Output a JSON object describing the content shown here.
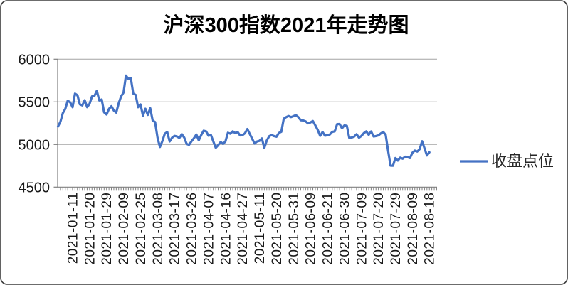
{
  "chart": {
    "title": "沪深300指数2021年走势图",
    "legend_label": "收盘点位"
  },
  "colors": {
    "line": "#4472C4",
    "gridline": "#A3A3A3",
    "axis": "#808080",
    "tick": "#808080",
    "text": "#1a1a1a",
    "border": "#3b3b3b",
    "background": "#ffffff"
  },
  "chart_data": {
    "type": "line",
    "title": "沪深300指数2021年走势图",
    "xlabel": "",
    "ylabel": "",
    "ylim": [
      4500,
      6000
    ],
    "y_ticks": [
      4500,
      5000,
      5500,
      6000
    ],
    "grid": "horizontal",
    "legend_position": "right",
    "x_label_first_index": 6,
    "x_label_every": 7,
    "x_tick_labels": [
      "2021-01-11",
      "2021-01-20",
      "2021-01-29",
      "2021-02-09",
      "2021-02-25",
      "2021-03-08",
      "2021-03-17",
      "2021-03-26",
      "2021-04-07",
      "2021-04-16",
      "2021-04-27",
      "2021-05-11",
      "2021-05-20",
      "2021-05-31",
      "2021-06-09",
      "2021-06-21",
      "2021-06-30",
      "2021-07-09",
      "2021-07-20",
      "2021-07-29",
      "2021-08-09",
      "2021-08-18"
    ],
    "series": [
      {
        "name": "收盘点位",
        "color": "#4472C4",
        "dates": [
          "2020-12-31",
          "2021-01-04",
          "2021-01-05",
          "2021-01-06",
          "2021-01-07",
          "2021-01-08",
          "2021-01-11",
          "2021-01-12",
          "2021-01-13",
          "2021-01-14",
          "2021-01-15",
          "2021-01-18",
          "2021-01-19",
          "2021-01-20",
          "2021-01-21",
          "2021-01-22",
          "2021-01-25",
          "2021-01-26",
          "2021-01-27",
          "2021-01-28",
          "2021-01-29",
          "2021-02-01",
          "2021-02-02",
          "2021-02-03",
          "2021-02-04",
          "2021-02-05",
          "2021-02-08",
          "2021-02-09",
          "2021-02-10",
          "2021-02-18",
          "2021-02-19",
          "2021-02-22",
          "2021-02-23",
          "2021-02-24",
          "2021-02-25",
          "2021-02-26",
          "2021-03-01",
          "2021-03-02",
          "2021-03-03",
          "2021-03-04",
          "2021-03-05",
          "2021-03-08",
          "2021-03-09",
          "2021-03-10",
          "2021-03-11",
          "2021-03-12",
          "2021-03-15",
          "2021-03-16",
          "2021-03-17",
          "2021-03-18",
          "2021-03-19",
          "2021-03-22",
          "2021-03-23",
          "2021-03-24",
          "2021-03-25",
          "2021-03-26",
          "2021-03-29",
          "2021-03-30",
          "2021-03-31",
          "2021-04-01",
          "2021-04-02",
          "2021-04-06",
          "2021-04-07",
          "2021-04-08",
          "2021-04-09",
          "2021-04-12",
          "2021-04-13",
          "2021-04-14",
          "2021-04-15",
          "2021-04-16",
          "2021-04-19",
          "2021-04-20",
          "2021-04-21",
          "2021-04-22",
          "2021-04-23",
          "2021-04-26",
          "2021-04-27",
          "2021-04-28",
          "2021-04-29",
          "2021-04-30",
          "2021-05-06",
          "2021-05-07",
          "2021-05-10",
          "2021-05-11",
          "2021-05-12",
          "2021-05-13",
          "2021-05-14",
          "2021-05-17",
          "2021-05-18",
          "2021-05-19",
          "2021-05-20",
          "2021-05-21",
          "2021-05-24",
          "2021-05-25",
          "2021-05-26",
          "2021-05-27",
          "2021-05-28",
          "2021-05-31",
          "2021-06-01",
          "2021-06-02",
          "2021-06-03",
          "2021-06-04",
          "2021-06-07",
          "2021-06-08",
          "2021-06-09",
          "2021-06-10",
          "2021-06-11",
          "2021-06-15",
          "2021-06-16",
          "2021-06-17",
          "2021-06-18",
          "2021-06-21",
          "2021-06-22",
          "2021-06-23",
          "2021-06-24",
          "2021-06-25",
          "2021-06-28",
          "2021-06-29",
          "2021-06-30",
          "2021-07-01",
          "2021-07-02",
          "2021-07-05",
          "2021-07-06",
          "2021-07-07",
          "2021-07-08",
          "2021-07-09",
          "2021-07-12",
          "2021-07-13",
          "2021-07-14",
          "2021-07-15",
          "2021-07-16",
          "2021-07-19",
          "2021-07-20",
          "2021-07-21",
          "2021-07-22",
          "2021-07-23",
          "2021-07-26",
          "2021-07-27",
          "2021-07-28",
          "2021-07-29",
          "2021-07-30",
          "2021-08-02",
          "2021-08-03",
          "2021-08-04",
          "2021-08-05",
          "2021-08-06",
          "2021-08-09",
          "2021-08-10",
          "2021-08-11",
          "2021-08-12",
          "2021-08-13",
          "2021-08-16",
          "2021-08-17",
          "2021-08-18"
        ],
        "values": [
          5211.29,
          5267.72,
          5368.5,
          5417.67,
          5513.33,
          5495.43,
          5437.52,
          5596.87,
          5577.97,
          5470.46,
          5458.08,
          5518.52,
          5437.86,
          5476.43,
          5564.26,
          5569.78,
          5629.02,
          5516.74,
          5528.03,
          5377.06,
          5351.96,
          5417.05,
          5448.69,
          5398.18,
          5374.24,
          5483.07,
          5564.52,
          5608.63,
          5807.72,
          5768.71,
          5778.84,
          5597.33,
          5581.82,
          5437.25,
          5469.73,
          5336.76,
          5419.0,
          5347.53,
          5425.16,
          5280.78,
          5262.8,
          5080.02,
          4970.95,
          5039.59,
          5126.13,
          5146.47,
          5035.54,
          5079.36,
          5100.86,
          5094.67,
          5076.61,
          5120.44,
          5081.22,
          5007.04,
          4996.33,
          5037.61,
          5072.93,
          5116.87,
          5048.36,
          5110.22,
          5161.57,
          5154.43,
          5103.13,
          5111.36,
          5035.34,
          4961.59,
          4992.64,
          5029.0,
          5006.69,
          5037.01,
          5137.52,
          5126.07,
          5153.99,
          5133.97,
          5146.38,
          5106.63,
          5109.78,
          5130.53,
          5181.7,
          5123.49,
          5067.31,
          5011.49,
          5035.31,
          5042.63,
          5070.83,
          4960.18,
          5046.45,
          5096.42,
          5111.11,
          5098.53,
          5091.18,
          5135.36,
          5148.49,
          5302.27,
          5320.57,
          5334.17,
          5321.28,
          5331.57,
          5344.68,
          5320.96,
          5284.72,
          5282.17,
          5271.57,
          5248.4,
          5258.31,
          5274.86,
          5224.66,
          5171.23,
          5101.14,
          5146.52,
          5102.56,
          5109.48,
          5117.83,
          5147.92,
          5153.77,
          5239.11,
          5240.52,
          5190.44,
          5224.04,
          5218.94,
          5076.75,
          5081.49,
          5092.66,
          5120.37,
          5080.11,
          5100.21,
          5133.32,
          5154.37,
          5113.45,
          5152.88,
          5094.22,
          5098.94,
          5106.99,
          5129.43,
          5147.65,
          5112.76,
          4925.62,
          4751.96,
          4751.41,
          4841.23,
          4811.17,
          4845.93,
          4833.55,
          4857.26,
          4850.74,
          4841.1,
          4902.98,
          4928.34,
          4917.22,
          4945.55,
          5038.27,
          4955.37,
          4871.59,
          4908.57
        ]
      }
    ]
  }
}
